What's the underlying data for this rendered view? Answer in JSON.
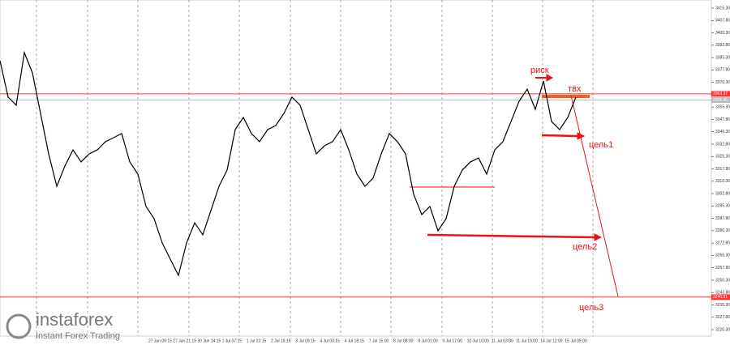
{
  "chart_data": {
    "type": "line",
    "color": "#000000",
    "values": [
      3383.4,
      3361.3,
      3356.4,
      3388.3,
      3376.0,
      3351.4,
      3326.9,
      3307.2,
      3319.5,
      3329.3,
      3322.0,
      3326.9,
      3329.3,
      3334.3,
      3336.7,
      3339.2,
      3322.0,
      3314.6,
      3295.0,
      3287.6,
      3272.9,
      3263.0,
      3253.2,
      3272.9,
      3285.1,
      3277.8,
      3292.5,
      3307.2,
      3317.1,
      3341.6,
      3349.0,
      3339.2,
      3334.3,
      3341.6,
      3344.1,
      3351.4,
      3361.3,
      3356.4,
      3341.6,
      3326.9,
      3331.8,
      3334.3,
      3341.6,
      3329.3,
      3314.6,
      3307.2,
      3312.2,
      3326.9,
      3339.2,
      3334.3,
      3326.9,
      3302.3,
      3290.1,
      3295.0,
      3280.2,
      3287.6,
      3307.2,
      3317.1,
      3322.0,
      3324.4,
      3314.6,
      3329.3,
      3334.3,
      3346.5,
      3358.8,
      3366.2,
      3353.9,
      3371.1,
      3346.5,
      3341.6,
      3349.0,
      3361.3
    ],
    "ylim": [
      3220.3,
      3415.3
    ],
    "yticks": [
      {
        "value": 3415.3,
        "label": "3415.30"
      },
      {
        "value": 3407.8,
        "label": "3407.80"
      },
      {
        "value": 3400.3,
        "label": "3400.30"
      },
      {
        "value": 3392.8,
        "label": "3392.80"
      },
      {
        "value": 3385.3,
        "label": "3385.30"
      },
      {
        "value": 3377.8,
        "label": "3377.80"
      },
      {
        "value": 3370.3,
        "label": "3370.30"
      },
      {
        "value": 3362.8,
        "label": "3362.80"
      },
      {
        "value": 3355.3,
        "label": "3355.30"
      },
      {
        "value": 3347.8,
        "label": "3347.80"
      },
      {
        "value": 3340.3,
        "label": "3340.30"
      },
      {
        "value": 3332.8,
        "label": "3332.80"
      },
      {
        "value": 3325.3,
        "label": "3325.30"
      },
      {
        "value": 3317.8,
        "label": "3317.80"
      },
      {
        "value": 3310.3,
        "label": "3310.30"
      },
      {
        "value": 3302.8,
        "label": "3302.80"
      },
      {
        "value": 3295.3,
        "label": "3295.30"
      },
      {
        "value": 3287.8,
        "label": "3287.80"
      },
      {
        "value": 3280.3,
        "label": "3280.30"
      },
      {
        "value": 3272.8,
        "label": "3272.80"
      },
      {
        "value": 3265.3,
        "label": "3265.30"
      },
      {
        "value": 3257.8,
        "label": "3257.80"
      },
      {
        "value": 3250.3,
        "label": "3250.30"
      },
      {
        "value": 3242.8,
        "label": "3242.80"
      },
      {
        "value": 3235.3,
        "label": "3235.30"
      },
      {
        "value": 3227.8,
        "label": "3227.80"
      },
      {
        "value": 3220.3,
        "label": "3220.30"
      }
    ],
    "x_labels": [
      "27 Jun 09:15",
      "27 Jun 21:15",
      "30 Jun 14:15",
      "1 Jul 07:15",
      "1 Jul 23:15",
      "2 Jul 16:15",
      "3 Jul 09:15",
      "4 Jul 03:15",
      "4 Jul 18:15",
      "7 Jul 15:00",
      "8 Jul 08:00",
      "9 Jul 01:00",
      "9 Jul 17:00",
      "10 Jul 10:00",
      "11 Jul 03:00",
      "11 Jul 19:00",
      "14 Jul 12:00",
      "15 Jul 05:00"
    ],
    "levels": [
      {
        "value": 3363.3,
        "label": "3363.37",
        "color": "#ff3333"
      },
      {
        "value": 3359.5,
        "label": "3359.45",
        "color": "#bbbbbb"
      },
      {
        "value": 3240.0,
        "label": "3240.01",
        "color": "#ff3333"
      }
    ],
    "annotations": [
      "риск",
      "твх",
      "цель1",
      "цель2",
      "цель3"
    ],
    "logo": {
      "brand": "instaforex",
      "tagline": "Instant Forex Trading"
    }
  }
}
